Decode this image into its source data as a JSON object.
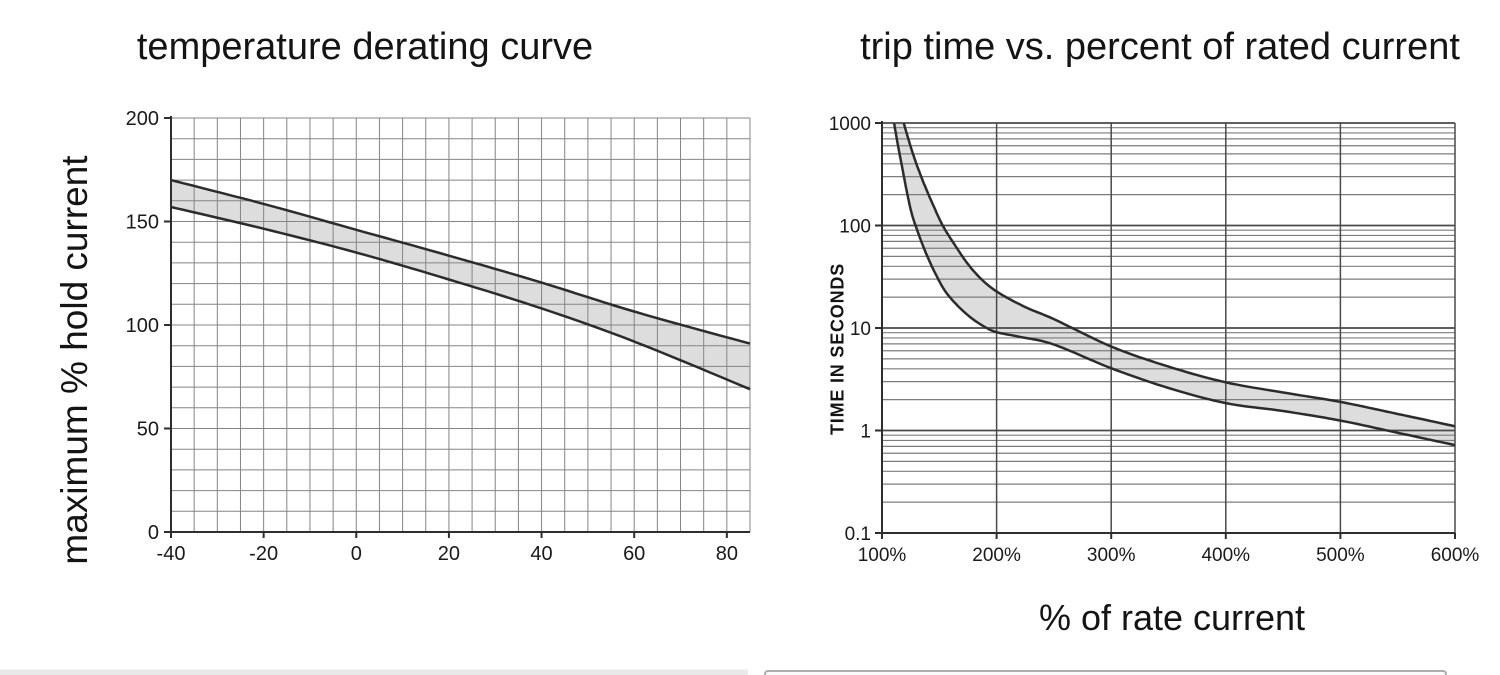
{
  "colors": {
    "grid_minor_left": "#858585",
    "grid_minor": "#7d7d7d",
    "grid_major": "#4a4a4a",
    "axis": "#2e2e2e",
    "curve": "#2c2c2c",
    "band_fill": "#d9d9d9",
    "text": "#141414",
    "bottom_bar": "#e9e9e9",
    "bottom_panel_border": "#adadad",
    "bottom_panel_fill": "#fbfbfb"
  },
  "chart_data": [
    {
      "type": "area",
      "title": "temperature derating curve",
      "xlabel": "",
      "ylabel": "maximum % hold current",
      "xlim": [
        -40,
        85
      ],
      "ylim": [
        0,
        200
      ],
      "x_grid_step": 5,
      "y_grid_step": 10,
      "x_ticks": [
        {
          "v": -40,
          "label": "-40"
        },
        {
          "v": -20,
          "label": "-20"
        },
        {
          "v": 0,
          "label": "0"
        },
        {
          "v": 20,
          "label": "20"
        },
        {
          "v": 40,
          "label": "40"
        },
        {
          "v": 60,
          "label": "60"
        },
        {
          "v": 80,
          "label": "80"
        }
      ],
      "y_ticks": [
        {
          "v": 0,
          "label": "0"
        },
        {
          "v": 50,
          "label": "50"
        },
        {
          "v": 100,
          "label": "100"
        },
        {
          "v": 150,
          "label": "150"
        },
        {
          "v": 200,
          "label": "200"
        }
      ],
      "series": [
        {
          "name": "upper limit",
          "points": [
            [
              -40,
              170
            ],
            [
              -20,
              158.5
            ],
            [
              0,
              146
            ],
            [
              20,
              133.5
            ],
            [
              40,
              120.5
            ],
            [
              60,
              106.5
            ],
            [
              85,
              91
            ]
          ]
        },
        {
          "name": "lower limit",
          "points": [
            [
              -40,
              157
            ],
            [
              -20,
              146.5
            ],
            [
              0,
              135
            ],
            [
              20,
              122
            ],
            [
              40,
              108
            ],
            [
              60,
              92
            ],
            [
              85,
              69
            ]
          ]
        }
      ]
    },
    {
      "type": "area",
      "title": "trip time vs. percent of rated current",
      "xlabel": "% of rate current",
      "ylabel": "TIME IN SECONDS",
      "xlim": [
        100,
        600
      ],
      "ylim_log": [
        0.1,
        1000
      ],
      "x_ticks": [
        {
          "v": 100,
          "label": "100%"
        },
        {
          "v": 200,
          "label": "200%"
        },
        {
          "v": 300,
          "label": "300%"
        },
        {
          "v": 400,
          "label": "400%"
        },
        {
          "v": 500,
          "label": "500%"
        },
        {
          "v": 600,
          "label": "600%"
        }
      ],
      "y_ticks": [
        {
          "v": 0.1,
          "label": "0.1"
        },
        {
          "v": 1,
          "label": "1"
        },
        {
          "v": 10,
          "label": "10"
        },
        {
          "v": 100,
          "label": "100"
        },
        {
          "v": 1000,
          "label": "1000"
        }
      ],
      "series": [
        {
          "name": "upper limit",
          "points": [
            [
              119,
              1000
            ],
            [
              124,
              640
            ],
            [
              130,
              400
            ],
            [
              137,
              250
            ],
            [
              145,
              155
            ],
            [
              153,
              100
            ],
            [
              163,
              66
            ],
            [
              175,
              42
            ],
            [
              188,
              29
            ],
            [
              202,
              22
            ],
            [
              225,
              16
            ],
            [
              250,
              12.2
            ],
            [
              300,
              6.6
            ],
            [
              350,
              4.2
            ],
            [
              400,
              2.95
            ],
            [
              450,
              2.35
            ],
            [
              500,
              1.9
            ],
            [
              550,
              1.45
            ],
            [
              600,
              1.1
            ]
          ]
        },
        {
          "name": "lower limit",
          "points": [
            [
              110.5,
              1000
            ],
            [
              114,
              600
            ],
            [
              118,
              350
            ],
            [
              122,
              205
            ],
            [
              126,
              130
            ],
            [
              131,
              88
            ],
            [
              138,
              55
            ],
            [
              146,
              35
            ],
            [
              155,
              23
            ],
            [
              166,
              16.5
            ],
            [
              178,
              12.5
            ],
            [
              190,
              10.2
            ],
            [
              200,
              9.1
            ],
            [
              220,
              8.2
            ],
            [
              250,
              6.9
            ],
            [
              300,
              4.05
            ],
            [
              350,
              2.6
            ],
            [
              400,
              1.85
            ],
            [
              450,
              1.55
            ],
            [
              500,
              1.25
            ],
            [
              550,
              0.95
            ],
            [
              600,
              0.72
            ]
          ]
        }
      ]
    }
  ],
  "bottom_strip": {}
}
